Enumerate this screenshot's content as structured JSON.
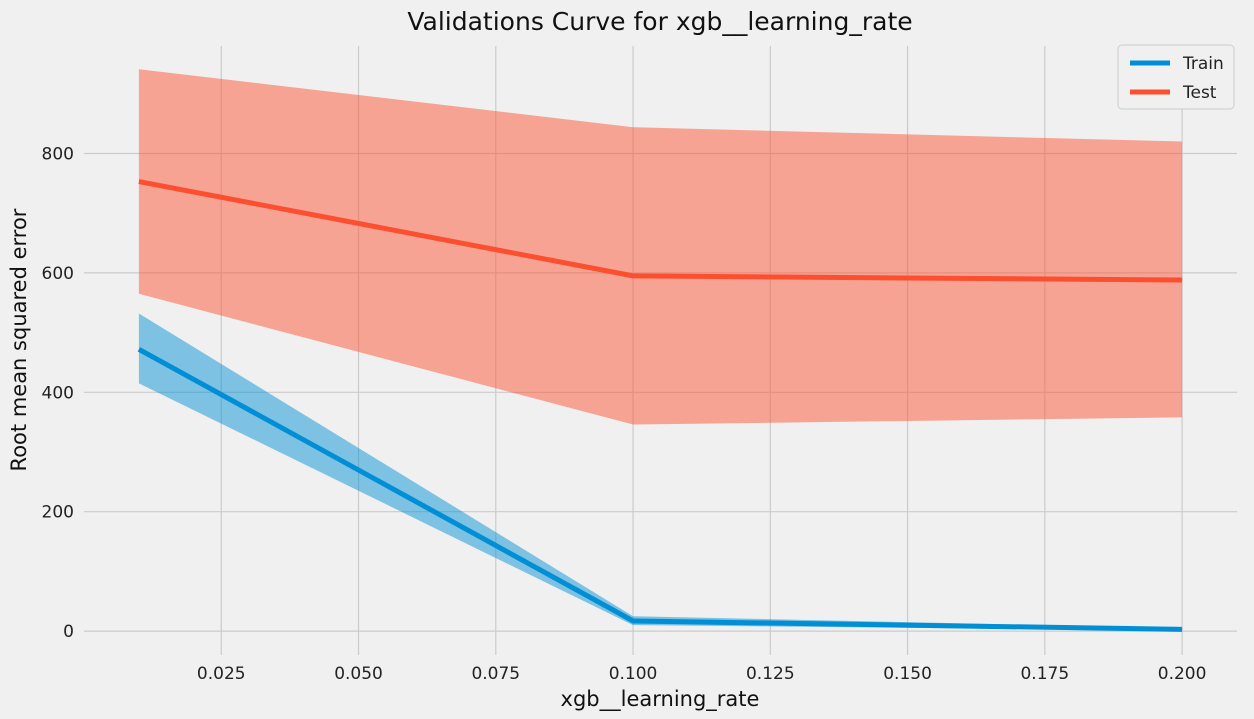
{
  "chart_data": {
    "type": "line",
    "title": "Validations Curve for xgb__learning_rate",
    "xlabel": "xgb__learning_rate",
    "ylabel": "Root mean squared error",
    "xlim": [
      0.0,
      0.21
    ],
    "ylim": [
      -40,
      980
    ],
    "x_ticks": [
      0.025,
      0.05,
      0.075,
      0.1,
      0.125,
      0.15,
      0.175,
      0.2
    ],
    "x_tick_labels": [
      "0.025",
      "0.050",
      "0.075",
      "0.100",
      "0.125",
      "0.150",
      "0.175",
      "0.200"
    ],
    "y_ticks": [
      0,
      200,
      400,
      600,
      800
    ],
    "y_tick_labels": [
      "0",
      "200",
      "400",
      "600",
      "800"
    ],
    "grid": true,
    "legend_position": "top-right",
    "x": [
      0.01,
      0.1,
      0.2
    ],
    "series": [
      {
        "name": "Train",
        "color": "#008fd5",
        "band_color": "#008fd5",
        "values": [
          472,
          17,
          3
        ],
        "lower": [
          415,
          10,
          1
        ],
        "upper": [
          532,
          25,
          5
        ]
      },
      {
        "name": "Test",
        "color": "#fc4f30",
        "band_color": "#fc4f30",
        "values": [
          753,
          595,
          588
        ],
        "lower": [
          565,
          346,
          358
        ],
        "upper": [
          941,
          844,
          820
        ]
      }
    ]
  }
}
